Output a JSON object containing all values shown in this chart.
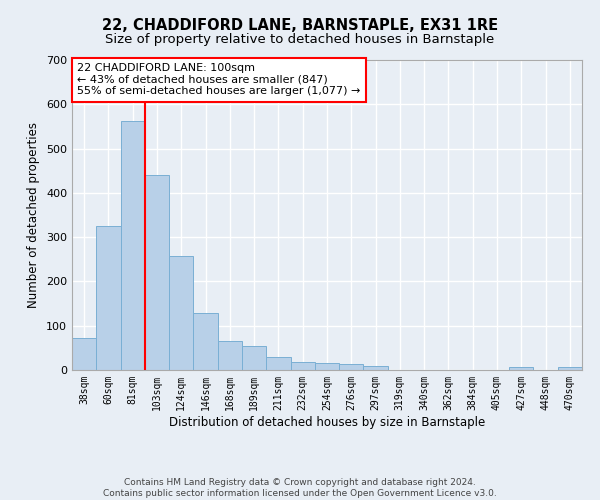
{
  "title": "22, CHADDIFORD LANE, BARNSTAPLE, EX31 1RE",
  "subtitle": "Size of property relative to detached houses in Barnstaple",
  "xlabel": "Distribution of detached houses by size in Barnstaple",
  "ylabel": "Number of detached properties",
  "categories": [
    "38sqm",
    "60sqm",
    "81sqm",
    "103sqm",
    "124sqm",
    "146sqm",
    "168sqm",
    "189sqm",
    "211sqm",
    "232sqm",
    "254sqm",
    "276sqm",
    "297sqm",
    "319sqm",
    "340sqm",
    "362sqm",
    "384sqm",
    "405sqm",
    "427sqm",
    "448sqm",
    "470sqm"
  ],
  "values": [
    72,
    325,
    562,
    440,
    258,
    128,
    65,
    55,
    30,
    17,
    15,
    13,
    8,
    1,
    0,
    0,
    0,
    0,
    6,
    0,
    6
  ],
  "bar_color": "#b8d0e8",
  "bar_edge_color": "#7aafd4",
  "bg_color": "#e8eef5",
  "grid_color": "#ffffff",
  "vline_color": "red",
  "annotation_text": "22 CHADDIFORD LANE: 100sqm\n← 43% of detached houses are smaller (847)\n55% of semi-detached houses are larger (1,077) →",
  "annotation_box_color": "white",
  "annotation_box_edge": "red",
  "ylim": [
    0,
    700
  ],
  "yticks": [
    0,
    100,
    200,
    300,
    400,
    500,
    600,
    700
  ],
  "footer": "Contains HM Land Registry data © Crown copyright and database right 2024.\nContains public sector information licensed under the Open Government Licence v3.0.",
  "title_fontsize": 10.5,
  "subtitle_fontsize": 9.5,
  "xlabel_fontsize": 8.5,
  "ylabel_fontsize": 8.5,
  "footer_fontsize": 6.5,
  "tick_fontsize": 7,
  "annotation_fontsize": 8
}
